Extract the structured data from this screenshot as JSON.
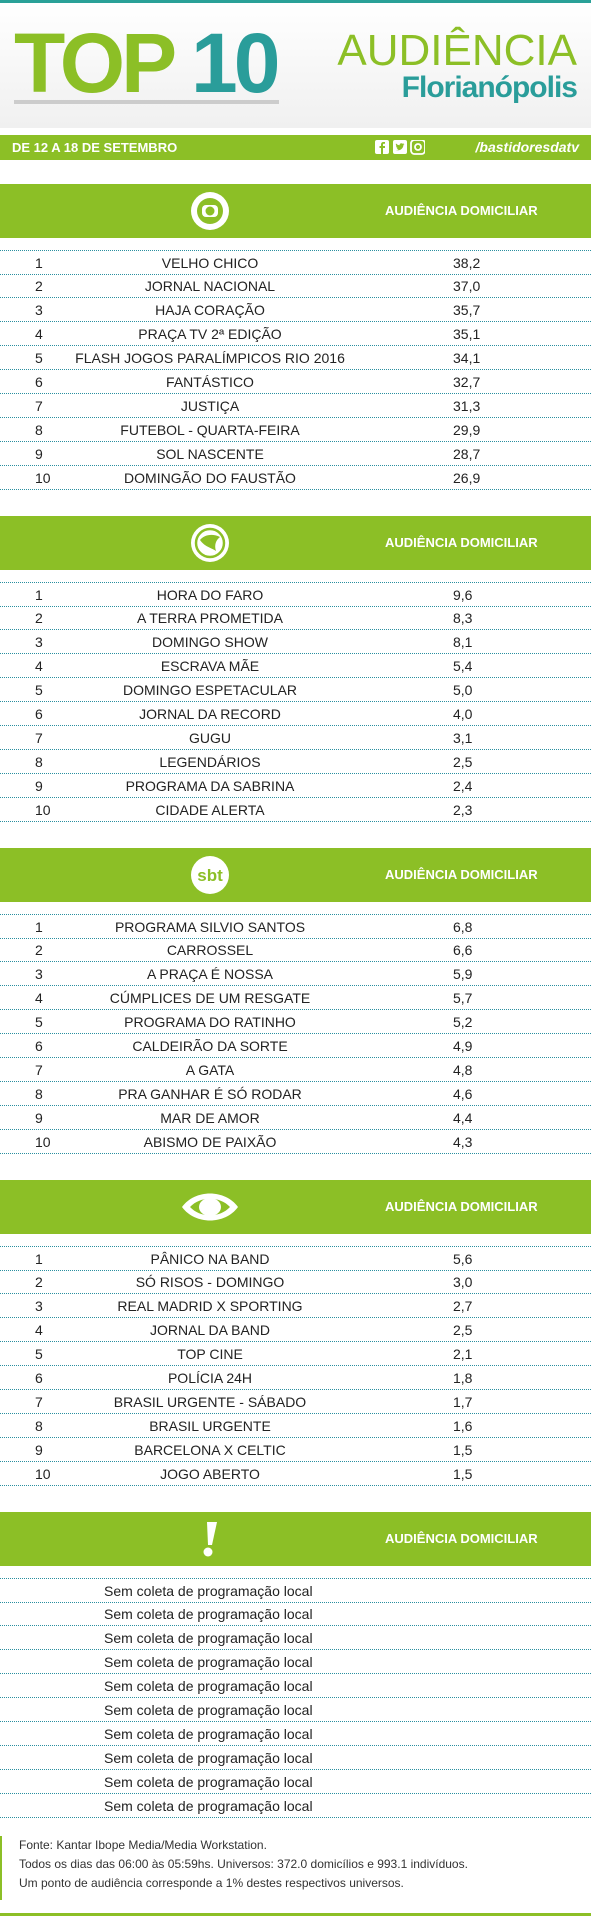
{
  "header": {
    "top_word": "TOP",
    "top_number": "10",
    "title_right": "AUDIÊNCIA",
    "subtitle": "Florianópolis",
    "date": "DE 12 A 18 DE SETEMBRO",
    "social": "/bastidoresdatv"
  },
  "sections": [
    {
      "heading": "AUDIÊNCIA DOMICILIAR",
      "rows": [
        [
          "1",
          "VELHO CHICO",
          "38,2"
        ],
        [
          "2",
          "JORNAL NACIONAL",
          "37,0"
        ],
        [
          "3",
          "HAJA CORAÇÃO",
          "35,7"
        ],
        [
          "4",
          "PRAÇA TV 2ª EDIÇÃO",
          "35,1"
        ],
        [
          "5",
          "FLASH JOGOS PARALÍMPICOS RIO 2016",
          "34,1"
        ],
        [
          "6",
          "FANTÁSTICO",
          "32,7"
        ],
        [
          "7",
          "JUSTIÇA",
          "31,3"
        ],
        [
          "8",
          "FUTEBOL - QUARTA-FEIRA",
          "29,9"
        ],
        [
          "9",
          "SOL NASCENTE",
          "28,7"
        ],
        [
          "10",
          "DOMINGÃO DO FAUSTÃO",
          "26,9"
        ]
      ]
    },
    {
      "heading": "AUDIÊNCIA DOMICILIAR",
      "rows": [
        [
          "1",
          "HORA DO FARO",
          "9,6"
        ],
        [
          "2",
          "A TERRA PROMETIDA",
          "8,3"
        ],
        [
          "3",
          "DOMINGO SHOW",
          "8,1"
        ],
        [
          "4",
          "ESCRAVA MÃE",
          "5,4"
        ],
        [
          "5",
          "DOMINGO ESPETACULAR",
          "5,0"
        ],
        [
          "6",
          "JORNAL DA RECORD",
          "4,0"
        ],
        [
          "7",
          "GUGU",
          "3,1"
        ],
        [
          "8",
          "LEGENDÁRIOS",
          "2,5"
        ],
        [
          "9",
          "PROGRAMA DA SABRINA",
          "2,4"
        ],
        [
          "10",
          "CIDADE ALERTA",
          "2,3"
        ]
      ]
    },
    {
      "logo_text": "sbt",
      "heading": "AUDIÊNCIA DOMICILIAR",
      "rows": [
        [
          "1",
          "PROGRAMA SILVIO SANTOS",
          "6,8"
        ],
        [
          "2",
          "CARROSSEL",
          "6,6"
        ],
        [
          "3",
          "A PRAÇA É NOSSA",
          "5,9"
        ],
        [
          "4",
          "CÚMPLICES DE UM RESGATE",
          "5,7"
        ],
        [
          "5",
          "PROGRAMA DO RATINHO",
          "5,2"
        ],
        [
          "6",
          "CALDEIRÃO DA SORTE",
          "4,9"
        ],
        [
          "7",
          "A GATA",
          "4,8"
        ],
        [
          "8",
          "PRA GANHAR É SÓ RODAR",
          "4,6"
        ],
        [
          "9",
          "MAR DE AMOR",
          "4,4"
        ],
        [
          "10",
          "ABISMO DE PAIXÃO",
          "4,3"
        ]
      ]
    },
    {
      "heading": "AUDIÊNCIA DOMICILIAR",
      "rows": [
        [
          "1",
          "PÂNICO NA BAND",
          "5,6"
        ],
        [
          "2",
          "SÓ RISOS - DOMINGO",
          "3,0"
        ],
        [
          "3",
          "REAL MADRID X SPORTING",
          "2,7"
        ],
        [
          "4",
          "JORNAL DA BAND",
          "2,5"
        ],
        [
          "5",
          "TOP CINE",
          "2,1"
        ],
        [
          "6",
          "POLÍCIA 24H",
          "1,8"
        ],
        [
          "7",
          "BRASIL URGENTE - SÁBADO",
          "1,7"
        ],
        [
          "8",
          "BRASIL URGENTE",
          "1,6"
        ],
        [
          "9",
          "BARCELONA X CELTIC",
          "1,5"
        ],
        [
          "10",
          "JOGO ABERTO",
          "1,5"
        ]
      ]
    },
    {
      "heading": "AUDIÊNCIA DOMICILIAR",
      "rows": [
        [
          "Sem coleta de programação local"
        ],
        [
          "Sem coleta de programação local"
        ],
        [
          "Sem coleta de programação local"
        ],
        [
          "Sem coleta de programação local"
        ],
        [
          "Sem coleta de programação local"
        ],
        [
          "Sem coleta de programação local"
        ],
        [
          "Sem coleta de programação local"
        ],
        [
          "Sem coleta de programação local"
        ],
        [
          "Sem coleta de programação local"
        ],
        [
          "Sem coleta de programação local"
        ]
      ]
    }
  ],
  "footer": {
    "lines": [
      "Fonte: Kantar Ibope Media/Media Workstation.",
      "Todos os dias das 06:00 às 05:59hs. Universos: 372.0 domicílios e 993.1 indivíduos.",
      "Um ponto de audiência corresponde a 1% destes respectivos universos."
    ]
  }
}
